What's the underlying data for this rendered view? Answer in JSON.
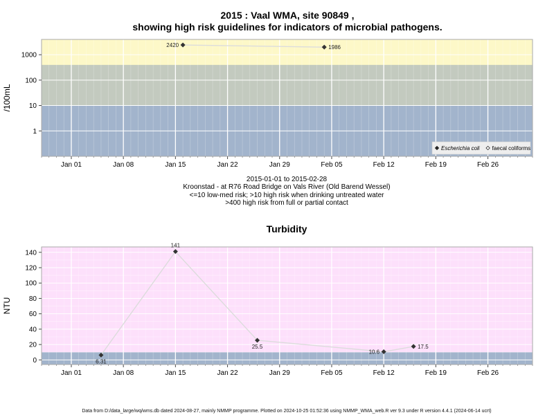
{
  "figure": {
    "title_line1": "2015 : Vaal WMA, site 90849 ,",
    "title_line2": "showing high risk guidelines for indicators of microbial pathogens.",
    "date_range": "2015-01-01 to 2015-02-28",
    "site_description": "Kroonstad - at R76 Road Bridge on Vals River (Old Barend Wessel)",
    "guideline_line1": "<=10 low-med risk; >10 high risk when drinking untreated water",
    "guideline_line2": ">400 high risk from full or partial contact",
    "turbidity_title": "Turbidity",
    "footer": "Data from D:/data_large/wq/wms.db dated 2024-08-27, mainly NMMP programme. Plotted on 2024-10-25 01:52:36 using NMMP_WMA_web.R ver 9.3 under R version 4.4.1 (2024-06-14 ucrt)"
  },
  "colors": {
    "band_low": "#a2b4cc",
    "band_mid": "#c3cabf",
    "band_high": "#fdf8c8",
    "turbidity_bg": "#fde0fb",
    "turbidity_low": "#a2b4cc",
    "grid": "#ffffff",
    "line": "#dcdcdc",
    "point": "#333333",
    "border": "#aaaaaa"
  },
  "chart_data": [
    {
      "type": "line",
      "ylabel": "/100mL",
      "yscale": "log",
      "ylim": [
        0.1,
        4000
      ],
      "yticks": [
        1,
        10,
        100,
        1000
      ],
      "ytick_labels": [
        "1",
        "10",
        "100",
        "1000"
      ],
      "xlim": [
        "2014-12-28",
        "2015-03-04"
      ],
      "xticks": [
        "2015-01-01",
        "2015-01-08",
        "2015-01-15",
        "2015-01-22",
        "2015-01-29",
        "2015-02-05",
        "2015-02-12",
        "2015-02-19",
        "2015-02-26"
      ],
      "xtick_labels": [
        "Jan 01",
        "Jan 08",
        "Jan 15",
        "Jan 22",
        "Jan 29",
        "Feb 05",
        "Feb 12",
        "Feb 19",
        "Feb 26"
      ],
      "bands": [
        {
          "from": 0.1,
          "to": 10,
          "color_key": "band_low"
        },
        {
          "from": 10,
          "to": 400,
          "color_key": "band_mid"
        },
        {
          "from": 400,
          "to": 4000,
          "color_key": "band_high"
        }
      ],
      "series": [
        {
          "name": "Escherichia coli",
          "x": [
            "2015-01-16",
            "2015-02-04"
          ],
          "y": [
            2420,
            1986
          ],
          "labels": [
            "2420",
            "1986"
          ],
          "label_side": [
            "left",
            "right"
          ]
        }
      ],
      "legend": {
        "position": "bottom-right",
        "items": [
          {
            "label": "Escherichia coli",
            "marker": "filled-diamond",
            "italic": true
          },
          {
            "label": "faecal coliforms",
            "marker": "open-diamond",
            "italic": false
          }
        ]
      }
    },
    {
      "type": "line",
      "title": "Turbidity",
      "ylabel": "NTU",
      "ylim": [
        -6,
        147
      ],
      "yticks": [
        0,
        20,
        40,
        60,
        80,
        100,
        120,
        140
      ],
      "ytick_labels": [
        "0",
        "20",
        "40",
        "60",
        "80",
        "100",
        "120",
        "140"
      ],
      "xlim": [
        "2014-12-28",
        "2015-03-04"
      ],
      "xticks": [
        "2015-01-01",
        "2015-01-08",
        "2015-01-15",
        "2015-01-22",
        "2015-01-29",
        "2015-02-05",
        "2015-02-12",
        "2015-02-19",
        "2015-02-26"
      ],
      "xtick_labels": [
        "Jan 01",
        "Jan 08",
        "Jan 15",
        "Jan 22",
        "Jan 29",
        "Feb 05",
        "Feb 12",
        "Feb 19",
        "Feb 26"
      ],
      "bands": [
        {
          "from": -6,
          "to": 10,
          "color_key": "turbidity_low"
        }
      ],
      "series": [
        {
          "name": "",
          "x": [
            "2015-01-05",
            "2015-01-15",
            "2015-01-26",
            "2015-02-12",
            "2015-02-16"
          ],
          "y": [
            6.31,
            141,
            25.5,
            10.6,
            17.5
          ],
          "labels": [
            "6.31",
            "141",
            "25.5",
            "10.6",
            "17.5"
          ],
          "label_side": [
            "below",
            "above",
            "below",
            "left",
            "right"
          ]
        }
      ]
    }
  ]
}
